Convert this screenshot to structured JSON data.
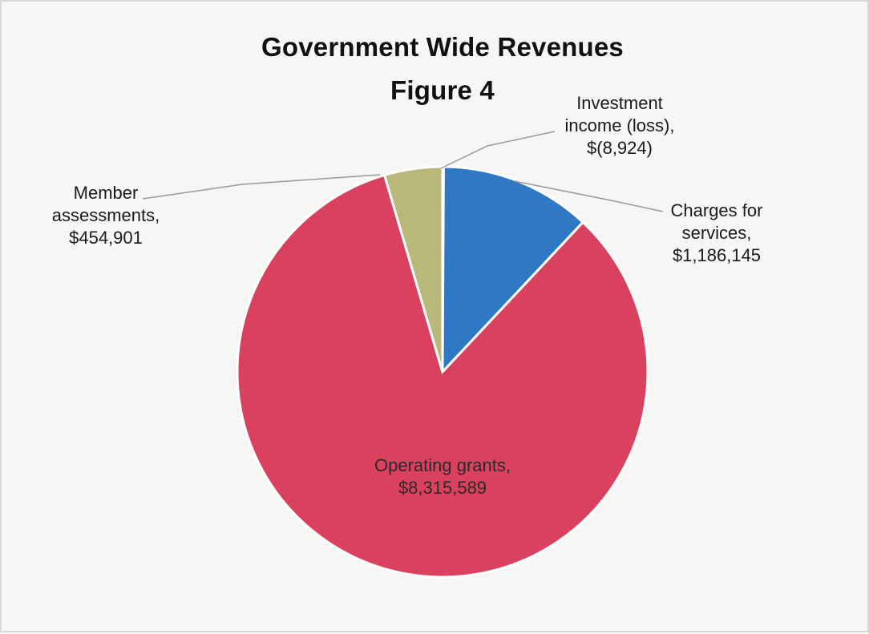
{
  "chart_data": {
    "type": "pie",
    "title": "Government Wide Revenues",
    "subtitle": "Figure 4",
    "slices": [
      {
        "name": "Investment income (loss)",
        "value": -8924,
        "label_lines": [
          "Investment",
          "income (loss),",
          "$(8,924)"
        ],
        "color": "#e8e8e4"
      },
      {
        "name": "Charges for services",
        "value": 1186145,
        "label_lines": [
          "Charges for",
          "services,",
          "$1,186,145"
        ],
        "color": "#2f78c4"
      },
      {
        "name": "Operating grants",
        "value": 8315589,
        "label_lines": [
          "Operating grants,",
          "$8,315,589"
        ],
        "color": "#d9415f"
      },
      {
        "name": "Member assessments",
        "value": 454901,
        "label_lines": [
          "Member",
          "assessments,",
          "$454,901"
        ],
        "color": "#b9b77a"
      }
    ]
  }
}
